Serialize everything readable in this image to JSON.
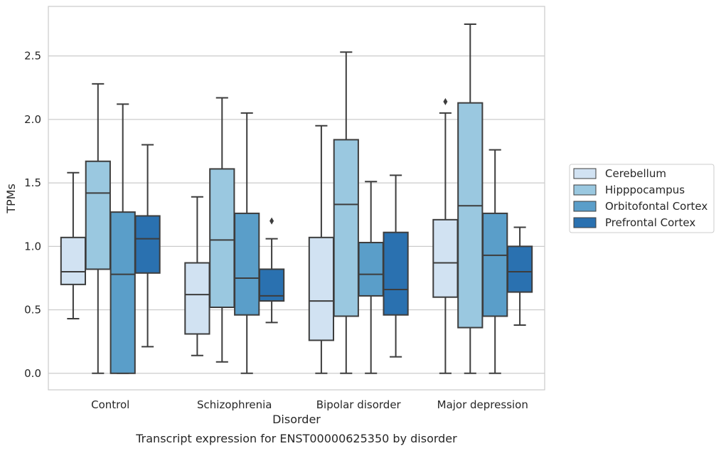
{
  "caption": "Transcript expression for ENST00000625350 by disorder",
  "chart_data": {
    "type": "boxplot",
    "xlabel": "Disorder",
    "ylabel": "TPMs",
    "ylim": [
      -0.13,
      2.89
    ],
    "yticks": [
      "0.0",
      "0.5",
      "1.0",
      "1.5",
      "2.0",
      "2.5"
    ],
    "grid": "horizontal",
    "legend_position": "right",
    "categories": [
      "Control",
      "Schizophrenia",
      "Bipolar disorder",
      "Major depression"
    ],
    "series": [
      {
        "name": "Cerebellum",
        "color": "#d1e2f2",
        "boxes": [
          {
            "whislo": 0.43,
            "q1": 0.7,
            "med": 0.8,
            "q3": 1.07,
            "whishi": 1.58,
            "fliers": []
          },
          {
            "whislo": 0.14,
            "q1": 0.31,
            "med": 0.62,
            "q3": 0.87,
            "whishi": 1.39,
            "fliers": []
          },
          {
            "whislo": 0.0,
            "q1": 0.26,
            "med": 0.57,
            "q3": 1.07,
            "whishi": 1.95,
            "fliers": []
          },
          {
            "whislo": 0.0,
            "q1": 0.6,
            "med": 0.87,
            "q3": 1.21,
            "whishi": 2.05,
            "fliers": [
              2.14
            ]
          }
        ]
      },
      {
        "name": "Hipppocampus",
        "color": "#9ac8e0",
        "boxes": [
          {
            "whislo": 0.0,
            "q1": 0.82,
            "med": 1.42,
            "q3": 1.67,
            "whishi": 2.28,
            "fliers": []
          },
          {
            "whislo": 0.09,
            "q1": 0.52,
            "med": 1.05,
            "q3": 1.61,
            "whishi": 2.17,
            "fliers": []
          },
          {
            "whislo": 0.0,
            "q1": 0.45,
            "med": 1.33,
            "q3": 1.84,
            "whishi": 2.53,
            "fliers": []
          },
          {
            "whislo": 0.0,
            "q1": 0.36,
            "med": 1.32,
            "q3": 2.13,
            "whishi": 2.75,
            "fliers": []
          }
        ]
      },
      {
        "name": "Orbitofontal Cortex",
        "color": "#5a9ec9",
        "boxes": [
          {
            "whislo": 0.0,
            "q1": 0.0,
            "med": 0.78,
            "q3": 1.27,
            "whishi": 2.12,
            "fliers": []
          },
          {
            "whislo": 0.0,
            "q1": 0.46,
            "med": 0.75,
            "q3": 1.26,
            "whishi": 2.05,
            "fliers": []
          },
          {
            "whislo": 0.0,
            "q1": 0.61,
            "med": 0.78,
            "q3": 1.03,
            "whishi": 1.51,
            "fliers": []
          },
          {
            "whislo": 0.0,
            "q1": 0.45,
            "med": 0.93,
            "q3": 1.26,
            "whishi": 1.76,
            "fliers": []
          }
        ]
      },
      {
        "name": "Prefrontal Cortex",
        "color": "#2a71b0",
        "boxes": [
          {
            "whislo": 0.21,
            "q1": 0.79,
            "med": 1.06,
            "q3": 1.24,
            "whishi": 1.8,
            "fliers": []
          },
          {
            "whislo": 0.4,
            "q1": 0.57,
            "med": 0.61,
            "q3": 0.82,
            "whishi": 1.06,
            "fliers": [
              1.2
            ]
          },
          {
            "whislo": 0.13,
            "q1": 0.46,
            "med": 0.66,
            "q3": 1.11,
            "whishi": 1.56,
            "fliers": []
          },
          {
            "whislo": 0.38,
            "q1": 0.64,
            "med": 0.8,
            "q3": 1.0,
            "whishi": 1.15,
            "fliers": []
          }
        ]
      }
    ]
  }
}
